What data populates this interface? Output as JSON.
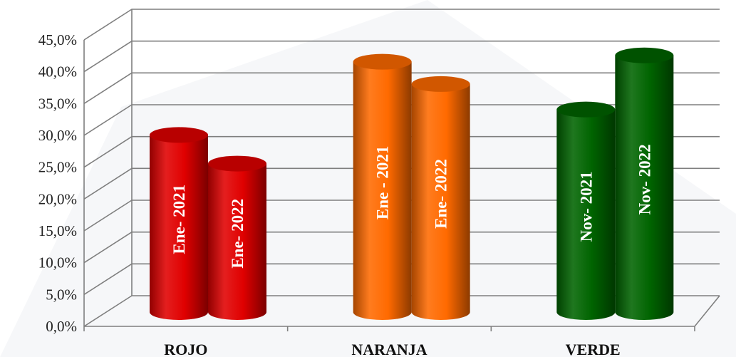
{
  "chart_data": {
    "type": "bar",
    "style": "3d-cylinder",
    "categories": [
      "ROJO",
      "NARANJA",
      "VERDE"
    ],
    "y_ticks": [
      "0,0%",
      "5,0%",
      "10,0%",
      "15,0%",
      "20,0%",
      "25,0%",
      "30,0%",
      "35,0%",
      "40,0%",
      "45,0%"
    ],
    "ylim": [
      0,
      45
    ],
    "y_unit": "%",
    "grid": true,
    "bars": [
      {
        "category": "ROJO",
        "label": "Ene- 2021",
        "value": 28.5,
        "color": "#e00000"
      },
      {
        "category": "ROJO",
        "label": "Ene- 2022",
        "value": 24.0,
        "color": "#e00000"
      },
      {
        "category": "NARANJA",
        "label": "Ene - 2021",
        "value": 40.0,
        "color": "#ff6a00"
      },
      {
        "category": "NARANJA",
        "label": "Ene- 2022",
        "value": 36.5,
        "color": "#ff6a00"
      },
      {
        "category": "VERDE",
        "label": "Nov- 2021",
        "value": 32.5,
        "color": "#006400"
      },
      {
        "category": "VERDE",
        "label": "Nov- 2022",
        "value": 41.0,
        "color": "#006400"
      }
    ]
  }
}
